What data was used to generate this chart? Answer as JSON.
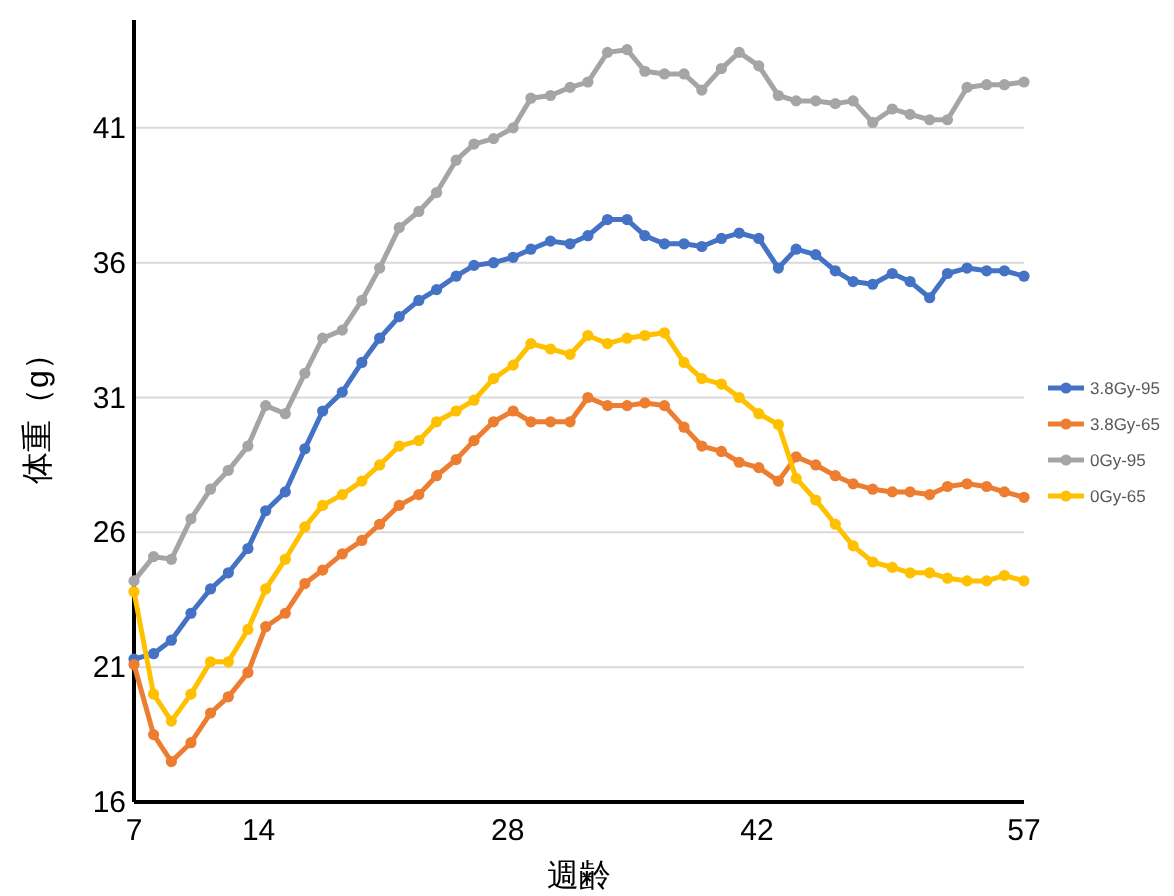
{
  "chart_data": {
    "type": "line",
    "xlabel": "週齢",
    "ylabel": "体重（g）",
    "x": [
      7,
      8.1,
      9.1,
      10.2,
      11.3,
      12.3,
      13.4,
      14.4,
      15.5,
      16.6,
      17.6,
      18.7,
      19.8,
      20.8,
      21.9,
      23,
      24,
      25.1,
      26.1,
      27.2,
      28.3,
      29.3,
      30.4,
      31.5,
      32.5,
      33.6,
      34.7,
      35.7,
      36.8,
      37.9,
      38.9,
      40,
      41,
      42.1,
      43.2,
      44.2,
      45.3,
      46.4,
      47.4,
      48.5,
      49.6,
      50.6,
      51.7,
      52.7,
      53.8,
      54.9,
      55.9,
      57
    ],
    "xlim": [
      7,
      57
    ],
    "xticks": [
      7,
      14,
      28,
      42,
      57
    ],
    "ylim": [
      16,
      45
    ],
    "yticks": [
      16,
      21,
      26,
      31,
      36,
      41
    ],
    "grid": "y",
    "legend": "right",
    "marker": "circle",
    "line_style": "solid",
    "series": [
      {
        "name": "3.8Gy-95",
        "color": "#4472c4",
        "values": [
          21.3,
          21.5,
          22.0,
          23.0,
          23.9,
          24.5,
          25.4,
          26.8,
          27.5,
          29.1,
          30.5,
          31.2,
          32.3,
          33.2,
          34.0,
          34.6,
          35.0,
          35.5,
          35.9,
          36.0,
          36.2,
          36.5,
          36.8,
          36.7,
          37.0,
          37.6,
          37.6,
          37.0,
          36.7,
          36.7,
          36.6,
          36.9,
          37.1,
          36.9,
          35.8,
          36.5,
          36.3,
          35.7,
          35.3,
          35.2,
          35.6,
          35.3,
          34.7,
          35.6,
          35.8,
          35.7,
          35.7,
          35.5
        ]
      },
      {
        "name": "3.8Gy-65",
        "color": "#ed7d31",
        "values": [
          21.1,
          18.5,
          17.5,
          18.2,
          19.3,
          19.9,
          20.8,
          22.5,
          23.0,
          24.1,
          24.6,
          25.2,
          25.7,
          26.3,
          27.0,
          27.4,
          28.1,
          28.7,
          29.4,
          30.1,
          30.5,
          30.1,
          30.1,
          30.1,
          31.0,
          30.7,
          30.7,
          30.8,
          30.7,
          29.9,
          29.2,
          29.0,
          28.6,
          28.4,
          27.9,
          28.8,
          28.5,
          28.1,
          27.8,
          27.6,
          27.5,
          27.5,
          27.4,
          27.7,
          27.8,
          27.7,
          27.5,
          27.3
        ]
      },
      {
        "name": "0Gy-95",
        "color": "#a5a5a5",
        "values": [
          24.2,
          25.1,
          25.0,
          26.5,
          27.6,
          28.3,
          29.2,
          30.7,
          30.4,
          31.9,
          33.2,
          33.5,
          34.6,
          35.8,
          37.3,
          37.9,
          38.6,
          39.8,
          40.4,
          40.6,
          41.0,
          42.1,
          42.2,
          42.5,
          42.7,
          43.8,
          43.9,
          43.1,
          43.0,
          43.0,
          42.4,
          43.2,
          43.8,
          43.3,
          42.2,
          42.0,
          42.0,
          41.9,
          42.0,
          41.2,
          41.7,
          41.5,
          41.3,
          41.3,
          42.5,
          42.6,
          42.6,
          42.7
        ]
      },
      {
        "name": "0Gy-65",
        "color": "#ffc000",
        "values": [
          23.8,
          20.0,
          19.0,
          20.0,
          21.2,
          21.2,
          22.4,
          23.9,
          25.0,
          26.2,
          27.0,
          27.4,
          27.9,
          28.5,
          29.2,
          29.4,
          30.1,
          30.5,
          30.9,
          31.7,
          32.2,
          33.0,
          32.8,
          32.6,
          33.3,
          33.0,
          33.2,
          33.3,
          33.4,
          32.3,
          31.7,
          31.5,
          31.0,
          30.4,
          30.0,
          28.0,
          27.2,
          26.3,
          25.5,
          24.9,
          24.7,
          24.5,
          24.5,
          24.3,
          24.2,
          24.2,
          24.4,
          24.2
        ]
      }
    ]
  }
}
